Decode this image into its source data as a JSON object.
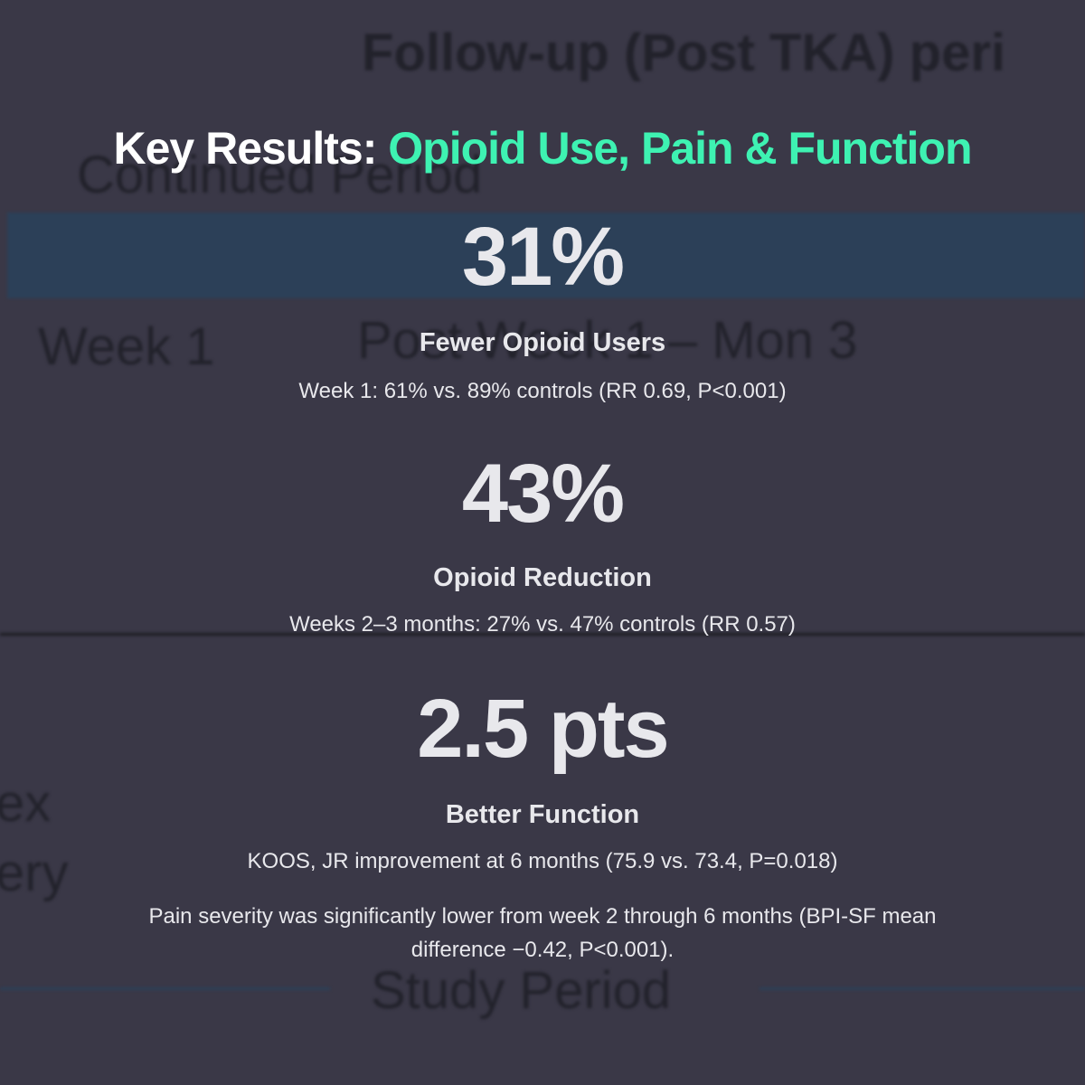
{
  "background": {
    "texts": [
      "Follow-up (Post TKA) peri",
      "Continued Period",
      "Week 1",
      "Post Week 1 – Mon 3",
      "ex",
      "ery",
      "Study Period"
    ]
  },
  "header": {
    "title": "Key Results:",
    "highlight": "Opioid Use, Pain & Function"
  },
  "stats": [
    {
      "value": "31%",
      "label": "Fewer Opioid Users",
      "detail": "Week 1: 61% vs. 89% controls (RR 0.69, P<0.001)"
    },
    {
      "value": "43%",
      "label": "Opioid Reduction",
      "detail": "Weeks 2–3 months: 27% vs. 47% controls (RR 0.57)"
    },
    {
      "value": "2.5 pts",
      "label": "Better Function",
      "detail": "KOOS, JR improvement at 6 months (75.9 vs. 73.4, P=0.018)"
    }
  ],
  "footnote": "Pain severity was significantly lower from week 2 through 6 months (BPI-SF mean difference −0.42, P<0.001)."
}
